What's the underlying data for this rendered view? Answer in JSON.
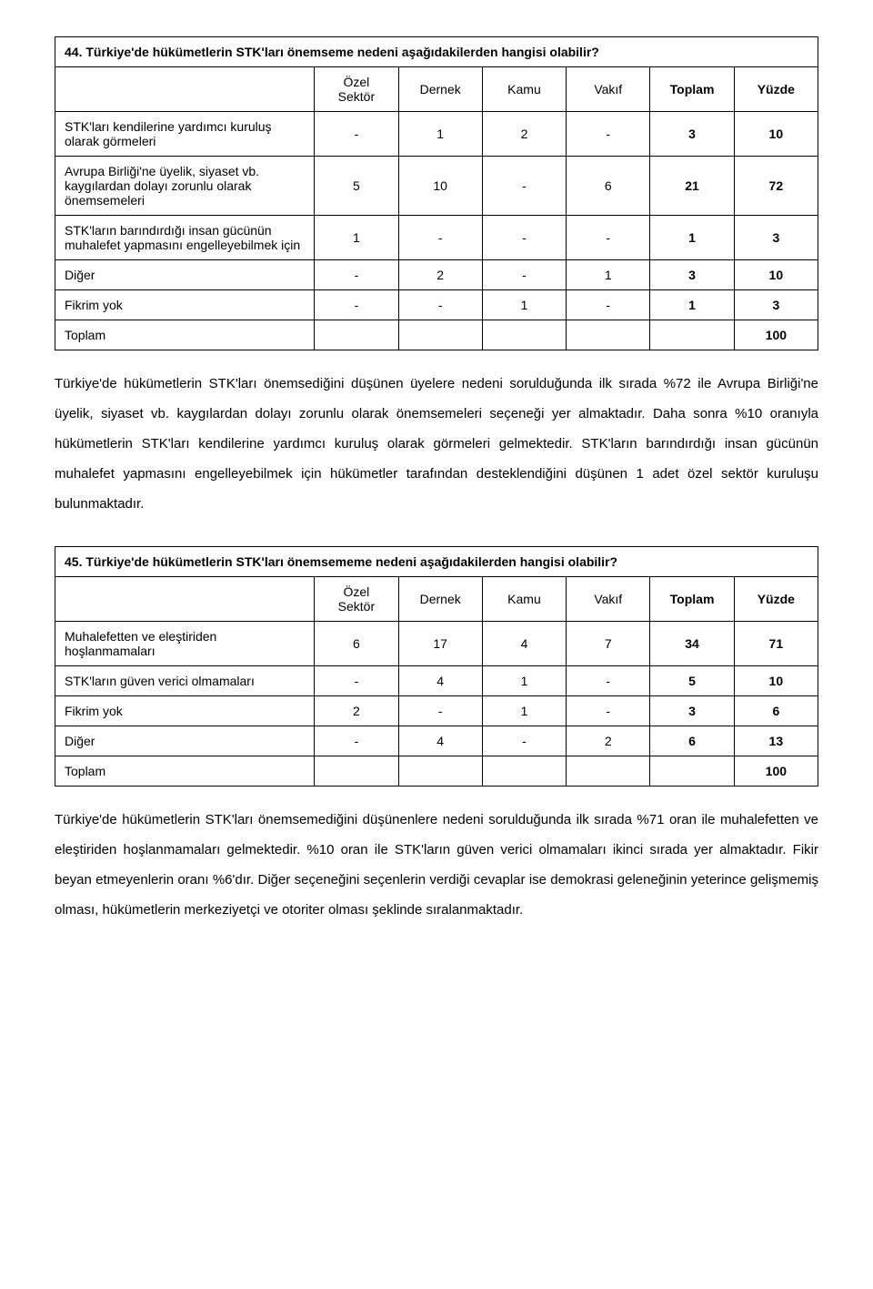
{
  "q44": {
    "title": "44. Türkiye'de hükümetlerin STK'ları önemseme nedeni aşağıdakilerden hangisi olabilir?",
    "headers": [
      "Özel Sektör",
      "Dernek",
      "Kamu",
      "Vakıf",
      "Toplam",
      "Yüzde"
    ],
    "rows": [
      {
        "label": "STK'ları kendilerine yardımcı kuruluş olarak görmeleri",
        "cells": [
          "-",
          "1",
          "2",
          "-",
          "3",
          "10"
        ]
      },
      {
        "label": "Avrupa Birliği'ne üyelik, siyaset vb. kaygılardan dolayı zorunlu olarak önemsemeleri",
        "cells": [
          "5",
          "10",
          "-",
          "6",
          "21",
          "72"
        ]
      },
      {
        "label": "STK'ların barındırdığı insan gücünün muhalefet yapmasını engelleyebilmek için",
        "cells": [
          "1",
          "-",
          "-",
          "-",
          "1",
          "3"
        ]
      },
      {
        "label": "Diğer",
        "cells": [
          "-",
          "2",
          "-",
          "1",
          "3",
          "10"
        ]
      },
      {
        "label": "Fikrim yok",
        "cells": [
          "-",
          "-",
          "1",
          "-",
          "1",
          "3"
        ]
      }
    ],
    "footer": {
      "label": "Toplam",
      "value": "100"
    },
    "paragraph": "Türkiye'de hükümetlerin STK'ları önemsediğini düşünen üyelere nedeni sorulduğunda ilk sırada %72 ile Avrupa Birliği'ne üyelik, siyaset vb. kaygılardan dolayı zorunlu olarak önemsemeleri seçeneği yer almaktadır. Daha sonra %10 oranıyla hükümetlerin STK'ları kendilerine yardımcı kuruluş olarak görmeleri gelmektedir. STK'ların barındırdığı insan gücünün muhalefet yapmasını engelleyebilmek için hükümetler tarafından desteklendiğini düşünen 1 adet özel sektör kuruluşu bulunmaktadır."
  },
  "q45": {
    "title": "45. Türkiye'de hükümetlerin STK'ları önemsememe nedeni aşağıdakilerden hangisi olabilir?",
    "headers": [
      "Özel Sektör",
      "Dernek",
      "Kamu",
      "Vakıf",
      "Toplam",
      "Yüzde"
    ],
    "rows": [
      {
        "label": "Muhalefetten ve eleştiriden hoşlanmamaları",
        "cells": [
          "6",
          "17",
          "4",
          "7",
          "34",
          "71"
        ]
      },
      {
        "label": "STK'ların güven verici olmamaları",
        "cells": [
          "-",
          "4",
          "1",
          "-",
          "5",
          "10"
        ]
      },
      {
        "label": "Fikrim yok",
        "cells": [
          "2",
          "-",
          "1",
          "-",
          "3",
          "6"
        ]
      },
      {
        "label": "Diğer",
        "cells": [
          "-",
          "4",
          "-",
          "2",
          "6",
          "13"
        ]
      }
    ],
    "footer": {
      "label": "Toplam",
      "value": "100"
    },
    "paragraph": "Türkiye'de hükümetlerin STK'ları önemsemediğini düşünenlere nedeni sorulduğunda ilk sırada %71 oran ile muhalefetten ve eleştiriden hoşlanmamaları gelmektedir. %10 oran ile STK'ların güven verici olmamaları ikinci sırada yer almaktadır. Fikir beyan etmeyenlerin oranı %6'dır. Diğer seçeneğini seçenlerin verdiği cevaplar ise demokrasi geleneğinin yeterince gelişmemiş olması, hükümetlerin merkeziyetçi ve otoriter olması şeklinde sıralanmaktadır."
  }
}
